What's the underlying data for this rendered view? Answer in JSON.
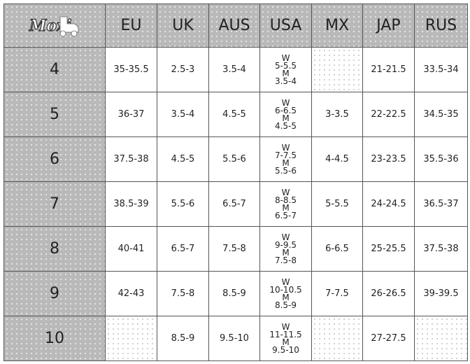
{
  "logo_text": "Moxi",
  "columns": [
    "EU",
    "UK",
    "AUS",
    "USA",
    "MX",
    "JAP",
    "RUS"
  ],
  "rows": [
    {
      "size": "4",
      "EU": "35-35.5",
      "UK": "2.5-3",
      "AUS": "3.5-4",
      "USA": [
        "W",
        "5-5.5",
        "M",
        "3.5-4"
      ],
      "MX": "",
      "JAP": "21-21.5",
      "RUS": "33.5-34"
    },
    {
      "size": "5",
      "EU": "36-37",
      "UK": "3.5-4",
      "AUS": "4.5-5",
      "USA": [
        "W",
        "6-6.5",
        "M",
        "4.5-5"
      ],
      "MX": "3-3.5",
      "JAP": "22-22.5",
      "RUS": "34.5-35"
    },
    {
      "size": "6",
      "EU": "37.5-38",
      "UK": "4.5-5",
      "AUS": "5.5-6",
      "USA": [
        "W",
        "7-7.5",
        "M",
        "5.5-6"
      ],
      "MX": "4-4.5",
      "JAP": "23-23.5",
      "RUS": "35.5-36"
    },
    {
      "size": "7",
      "EU": "38.5-39",
      "UK": "5.5-6",
      "AUS": "6.5-7",
      "USA": [
        "W",
        "8-8.5",
        "M",
        "6.5-7"
      ],
      "MX": "5-5.5",
      "JAP": "24-24.5",
      "RUS": "36.5-37"
    },
    {
      "size": "8",
      "EU": "40-41",
      "UK": "6.5-7",
      "AUS": "7.5-8",
      "USA": [
        "W",
        "9-9.5",
        "M",
        "7.5-8"
      ],
      "MX": "6-6.5",
      "JAP": "25-25.5",
      "RUS": "37.5-38"
    },
    {
      "size": "9",
      "EU": "42-43",
      "UK": "7.5-8",
      "AUS": "8.5-9",
      "USA": [
        "W",
        "10-10.5",
        "M",
        "8.5-9"
      ],
      "MX": "7-7.5",
      "JAP": "26-26.5",
      "RUS": "39-39.5"
    },
    {
      "size": "10",
      "EU": "",
      "UK": "8.5-9",
      "AUS": "9.5-10",
      "USA": [
        "W",
        "11-11.5",
        "M",
        "9.5-10"
      ],
      "MX": "",
      "JAP": "27-27.5",
      "RUS": ""
    }
  ]
}
